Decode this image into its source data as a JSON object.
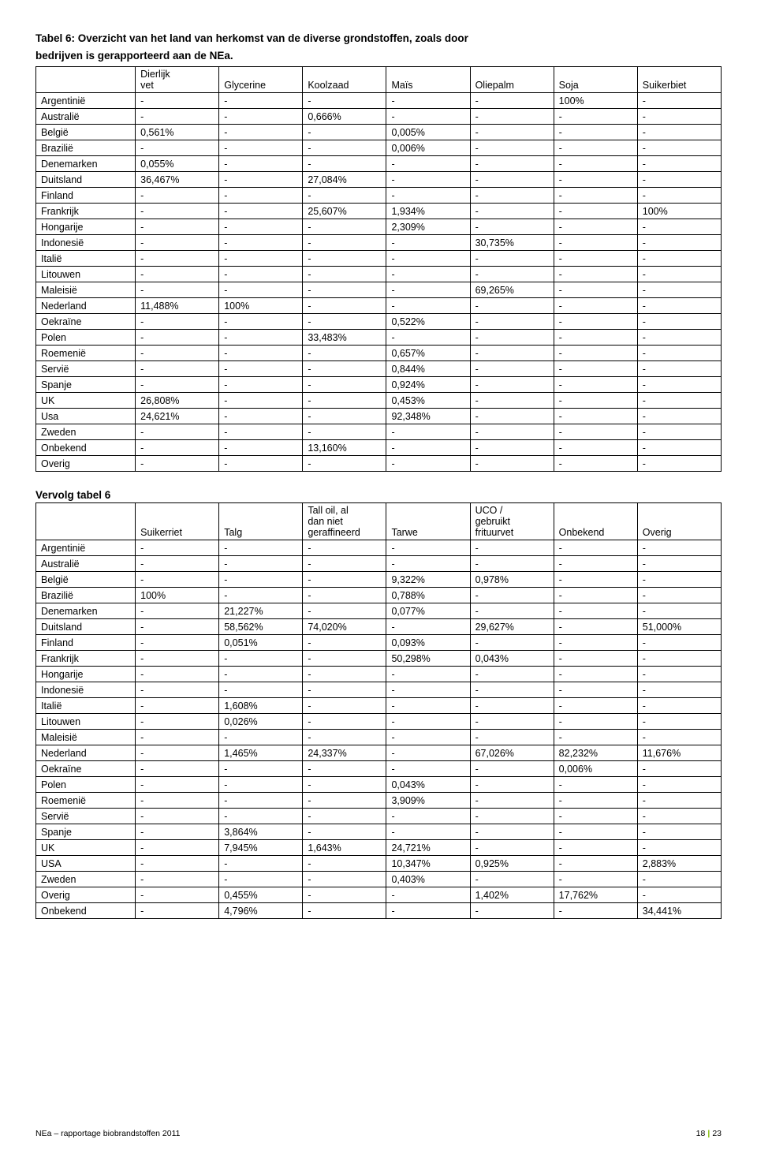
{
  "title_line1": "Tabel 6: Overzicht van het land van herkomst van de diverse grondstoffen, zoals door",
  "title_line2": "bedrijven is gerapporteerd aan de NEa.",
  "table1": {
    "headers": [
      "",
      "Dierlijk vet",
      "Glycerine",
      "Koolzaad",
      "Maïs",
      "Oliepalm",
      "Soja",
      "Suikerbiet"
    ],
    "rows": [
      [
        "Argentinië",
        "-",
        "-",
        "-",
        "-",
        "-",
        "100%",
        "-"
      ],
      [
        "Australië",
        "-",
        "-",
        "0,666%",
        "-",
        "-",
        "-",
        "-"
      ],
      [
        "België",
        "0,561%",
        "-",
        "-",
        "0,005%",
        "-",
        "-",
        "-"
      ],
      [
        "Brazilië",
        "-",
        "-",
        "-",
        "0,006%",
        "-",
        "-",
        "-"
      ],
      [
        "Denemarken",
        "0,055%",
        "-",
        "-",
        "-",
        "-",
        "-",
        "-"
      ],
      [
        "Duitsland",
        "36,467%",
        "-",
        "27,084%",
        "-",
        "-",
        "-",
        "-"
      ],
      [
        "Finland",
        "-",
        "-",
        "-",
        "-",
        "-",
        "-",
        "-"
      ],
      [
        "Frankrijk",
        "-",
        "-",
        "25,607%",
        "1,934%",
        "-",
        "-",
        "100%"
      ],
      [
        "Hongarije",
        "-",
        "-",
        "-",
        "2,309%",
        "-",
        "-",
        "-"
      ],
      [
        "Indonesië",
        "-",
        "-",
        "-",
        "-",
        "30,735%",
        "-",
        "-"
      ],
      [
        "Italië",
        "-",
        "-",
        "-",
        "-",
        "-",
        "-",
        "-"
      ],
      [
        "Litouwen",
        "-",
        "-",
        "-",
        "-",
        "-",
        "-",
        "-"
      ],
      [
        "Maleisië",
        "-",
        "-",
        "-",
        "-",
        "69,265%",
        "-",
        "-"
      ],
      [
        "Nederland",
        "11,488%",
        "100%",
        "-",
        "-",
        "-",
        "-",
        "-"
      ],
      [
        "Oekraïne",
        "-",
        "-",
        "-",
        "0,522%",
        "-",
        "-",
        "-"
      ],
      [
        "Polen",
        "-",
        "-",
        "33,483%",
        "-",
        "-",
        "-",
        "-"
      ],
      [
        "Roemenië",
        "-",
        "-",
        "-",
        "0,657%",
        "-",
        "-",
        "-"
      ],
      [
        "Servië",
        "-",
        "-",
        "-",
        "0,844%",
        "-",
        "-",
        "-"
      ],
      [
        "Spanje",
        "-",
        "-",
        "-",
        "0,924%",
        "-",
        "-",
        "-"
      ],
      [
        "UK",
        "26,808%",
        "-",
        "-",
        "0,453%",
        "-",
        "-",
        "-"
      ],
      [
        "Usa",
        "24,621%",
        "-",
        "-",
        "92,348%",
        "-",
        "-",
        "-"
      ],
      [
        "Zweden",
        "-",
        "-",
        "-",
        "-",
        "-",
        "-",
        "-"
      ],
      [
        "Onbekend",
        "-",
        "-",
        "13,160%",
        "-",
        "-",
        "-",
        "-"
      ],
      [
        "Overig",
        "-",
        "-",
        "-",
        "-",
        "-",
        "-",
        "-"
      ]
    ]
  },
  "subtitle": "Vervolg tabel 6",
  "table2": {
    "headers": [
      "",
      "Suikerriet",
      "Talg",
      "Tall oil, al dan niet geraffineerd",
      "Tarwe",
      "UCO / gebruikt frituurvet",
      "Onbekend",
      "Overig"
    ],
    "rows": [
      [
        "Argentinië",
        "-",
        "-",
        "-",
        "-",
        "-",
        "-",
        "-"
      ],
      [
        "Australië",
        "-",
        "-",
        "-",
        "-",
        "-",
        "-",
        "-"
      ],
      [
        "België",
        "-",
        "-",
        "-",
        "9,322%",
        "0,978%",
        "-",
        "-"
      ],
      [
        "Brazilië",
        "100%",
        "-",
        "-",
        "0,788%",
        "-",
        "-",
        "-"
      ],
      [
        "Denemarken",
        "-",
        "21,227%",
        "-",
        "0,077%",
        "-",
        "-",
        "-"
      ],
      [
        "Duitsland",
        "-",
        "58,562%",
        "74,020%",
        "-",
        "29,627%",
        "-",
        "51,000%"
      ],
      [
        "Finland",
        "-",
        "0,051%",
        "-",
        "0,093%",
        "-",
        "-",
        "-"
      ],
      [
        "Frankrijk",
        "-",
        "-",
        "-",
        "50,298%",
        "0,043%",
        "-",
        "-"
      ],
      [
        "Hongarije",
        "-",
        "-",
        "-",
        "-",
        "-",
        "-",
        "-"
      ],
      [
        "Indonesië",
        "-",
        "-",
        "-",
        "-",
        "-",
        "-",
        "-"
      ],
      [
        "Italië",
        "-",
        "1,608%",
        "-",
        "-",
        "-",
        "-",
        "-"
      ],
      [
        "Litouwen",
        "-",
        "0,026%",
        "-",
        "-",
        "-",
        "-",
        "-"
      ],
      [
        "Maleisië",
        "-",
        "-",
        "-",
        "-",
        "-",
        "-",
        "-"
      ],
      [
        "Nederland",
        "-",
        "1,465%",
        "24,337%",
        "-",
        "67,026%",
        "82,232%",
        "11,676%"
      ],
      [
        "Oekraïne",
        "-",
        "-",
        "-",
        "-",
        "-",
        "0,006%",
        "-"
      ],
      [
        "Polen",
        "-",
        "-",
        "-",
        "0,043%",
        "-",
        "-",
        "-"
      ],
      [
        "Roemenië",
        "-",
        "-",
        "-",
        "3,909%",
        "-",
        "-",
        "-"
      ],
      [
        "Servië",
        "-",
        "-",
        "-",
        "-",
        "-",
        "-",
        "-"
      ],
      [
        "Spanje",
        "-",
        "3,864%",
        "-",
        "-",
        "-",
        "-",
        "-"
      ],
      [
        "UK",
        "-",
        "7,945%",
        "1,643%",
        "24,721%",
        "-",
        "-",
        "-"
      ],
      [
        "USA",
        "-",
        "-",
        "-",
        "10,347%",
        "0,925%",
        "-",
        "2,883%"
      ],
      [
        "Zweden",
        "-",
        "-",
        "-",
        "0,403%",
        "-",
        "-",
        "-"
      ],
      [
        "Overig",
        "-",
        "0,455%",
        "-",
        "-",
        "1,402%",
        "17,762%",
        "-"
      ],
      [
        "Onbekend",
        "-",
        "4,796%",
        "-",
        "-",
        "-",
        "-",
        "34,441%"
      ]
    ]
  },
  "footer_left": "NEa – rapportage biobrandstoffen 2011",
  "footer_page": "18",
  "footer_total": "23"
}
